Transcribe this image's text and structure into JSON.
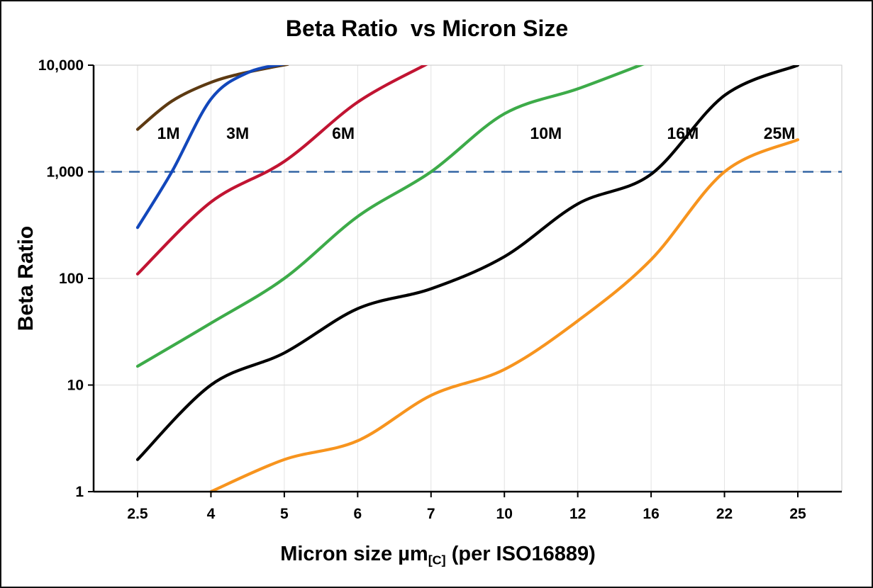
{
  "title": "Beta Ratio  vs Micron Size",
  "y_axis_label": "Beta Ratio",
  "x_axis_label": {
    "prefix": "Micron size µm",
    "subscript": "[C]",
    "suffix": " (per ISO16889)"
  },
  "chart_data": {
    "type": "line",
    "title": "Beta Ratio  vs Micron Size",
    "xlabel": "Micron size µm[C] (per ISO16889)",
    "ylabel": "Beta Ratio",
    "x_scale": "categorical",
    "y_scale": "log10",
    "ylim": [
      1,
      10000
    ],
    "grid": true,
    "x_ticks": [
      2.5,
      4,
      5,
      6,
      7,
      10,
      12,
      16,
      22,
      25
    ],
    "x_tick_labels": [
      "2.5",
      "4",
      "5",
      "6",
      "7",
      "10",
      "12",
      "16",
      "22",
      "25"
    ],
    "y_tick_values": [
      1,
      10,
      100,
      1000,
      10000
    ],
    "y_tick_labels": [
      "1",
      "10",
      "100",
      "1,000",
      "10,000"
    ],
    "reference_line": {
      "value": 1000,
      "style": "dashed",
      "color": "#3465a4"
    },
    "colors": {
      "grid_major": "#d9d9d9",
      "grid_vertical": "#e2e2e2",
      "border": "#c9c9c9",
      "axis": "#000000"
    },
    "series": [
      {
        "name": "1M",
        "color": "#5d3a12",
        "label": {
          "x": 2.9,
          "value": 2300
        },
        "points": [
          [
            2.5,
            2500
          ],
          [
            3.2,
            4600
          ],
          [
            4,
            6900
          ],
          [
            4.5,
            8600
          ],
          [
            5.05,
            10200
          ]
        ]
      },
      {
        "name": "3M",
        "color": "#1247bb",
        "label": {
          "x": 4.21,
          "value": 2300
        },
        "points": [
          [
            2.5,
            300
          ],
          [
            3.2,
            1000
          ],
          [
            4,
            4800
          ],
          [
            4.5,
            8500
          ],
          [
            5.0,
            10300
          ]
        ]
      },
      {
        "name": "6M",
        "color": "#c11432",
        "label": {
          "x": 5.65,
          "value": 2300
        },
        "points": [
          [
            2.5,
            110
          ],
          [
            4,
            520
          ],
          [
            5,
            1250
          ],
          [
            6,
            4500
          ],
          [
            6.95,
            10300
          ]
        ]
      },
      {
        "name": "10M",
        "color": "#3dab49",
        "label": {
          "x": 10.7,
          "value": 2300
        },
        "points": [
          [
            2.5,
            15
          ],
          [
            4,
            38
          ],
          [
            5,
            100
          ],
          [
            6,
            380
          ],
          [
            7,
            1000
          ],
          [
            10,
            3500
          ],
          [
            12,
            6000
          ],
          [
            15.6,
            10300
          ]
        ]
      },
      {
        "name": "16M",
        "color": "#000000",
        "label": {
          "x": 17.3,
          "value": 2300
        },
        "points": [
          [
            2.5,
            2
          ],
          [
            4,
            10
          ],
          [
            5,
            20
          ],
          [
            6,
            52
          ],
          [
            7,
            80
          ],
          [
            10,
            160
          ],
          [
            12,
            500
          ],
          [
            16,
            950
          ],
          [
            22,
            5200
          ],
          [
            25,
            10000
          ]
        ]
      },
      {
        "name": "25M",
        "color": "#f7941e",
        "label": {
          "x": 23.6,
          "value": 2300
        },
        "points": [
          [
            4,
            1
          ],
          [
            5,
            2
          ],
          [
            6,
            3
          ],
          [
            7,
            8
          ],
          [
            10,
            14
          ],
          [
            12,
            40
          ],
          [
            16,
            150
          ],
          [
            22,
            1000
          ],
          [
            25,
            2000
          ]
        ]
      }
    ]
  }
}
